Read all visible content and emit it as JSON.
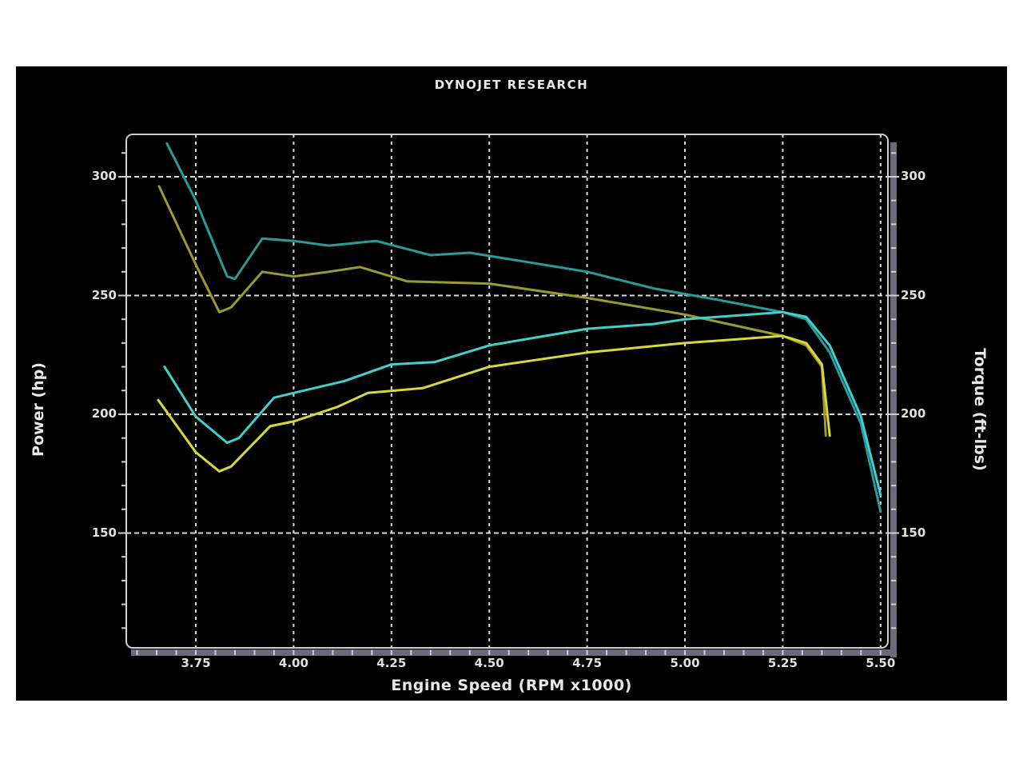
{
  "header": {
    "title": "DYNOJET RESEARCH"
  },
  "axes": {
    "x_title": "Engine Speed (RPM x1000)",
    "y_left_title": "Power (hp)",
    "y_right_title": "Torque (ft-lbs)"
  },
  "colors": {
    "background": "#000000",
    "grid": "#d8d8d8",
    "frame": "#cfcfcf",
    "axis_bar": "#6a6a78",
    "run1_power": "#3fd0d0",
    "run1_torque": "#2a9a9a",
    "run2_power": "#d8d838",
    "run2_torque": "#9a9a30"
  },
  "chart_data": {
    "type": "line",
    "title": "DYNOJET RESEARCH",
    "xlabel": "Engine Speed (RPM x1000)",
    "ylabel": "Power (hp)",
    "y2label": "Torque (ft-lbs)",
    "xlim": [
      3.57,
      5.52
    ],
    "ylim": [
      102,
      316
    ],
    "y2lim": [
      102,
      316
    ],
    "grid": true,
    "legend": "none",
    "x_ticks": [
      "3.75",
      "4.00",
      "4.25",
      "4.50",
      "4.75",
      "5.00",
      "5.25",
      "5.50"
    ],
    "x_tick_values": [
      3.75,
      4.0,
      4.25,
      4.5,
      4.75,
      5.0,
      5.25,
      5.5
    ],
    "y_ticks": [
      "300",
      "250",
      "200",
      "150"
    ],
    "y_tick_values": [
      300,
      250,
      200,
      150
    ],
    "y2_ticks": [
      "300",
      "250",
      "200",
      "150"
    ],
    "y2_tick_values": [
      300,
      250,
      200,
      150
    ],
    "series": [
      {
        "name": "Torque (run 1, teal)",
        "axis": "right",
        "color": "#2a9a9a",
        "x": [
          3.676,
          3.75,
          3.83,
          3.85,
          3.92,
          4.0,
          4.09,
          4.21,
          4.35,
          4.45,
          4.75,
          4.92,
          5.09,
          5.25,
          5.31,
          5.37,
          5.45,
          5.5
        ],
        "values": [
          314,
          290,
          258,
          257,
          274,
          273,
          271,
          273,
          267,
          268,
          260,
          253,
          248,
          243,
          240,
          226,
          196,
          159
        ]
      },
      {
        "name": "Torque (run 2, olive)",
        "axis": "right",
        "color": "#9a9a30",
        "x": [
          3.656,
          3.75,
          3.81,
          3.84,
          3.92,
          4.0,
          4.09,
          4.17,
          4.29,
          4.5,
          4.75,
          5.0,
          5.25,
          5.31,
          5.35,
          5.36
        ],
        "values": [
          296,
          263,
          243,
          245,
          260,
          258,
          260,
          262,
          256,
          255,
          249,
          242,
          233,
          229,
          220,
          191
        ]
      },
      {
        "name": "Power (run 1, cyan)",
        "axis": "left",
        "color": "#3fd0d0",
        "x": [
          3.67,
          3.75,
          3.83,
          3.86,
          3.95,
          4.0,
          4.13,
          4.25,
          4.36,
          4.5,
          4.75,
          4.92,
          5.0,
          5.25,
          5.31,
          5.37,
          5.45,
          5.5
        ],
        "values": [
          220,
          199,
          188,
          190,
          207,
          209,
          214,
          221,
          222,
          229,
          236,
          238,
          240,
          243,
          241,
          229,
          199,
          166
        ]
      },
      {
        "name": "Power (run 2, yellow)",
        "axis": "left",
        "color": "#d8d838",
        "x": [
          3.654,
          3.75,
          3.81,
          3.84,
          3.94,
          4.0,
          4.11,
          4.19,
          4.33,
          4.5,
          4.75,
          5.0,
          5.25,
          5.31,
          5.35,
          5.37
        ],
        "values": [
          206,
          184,
          176,
          178,
          195,
          197,
          203,
          209,
          211,
          220,
          226,
          230,
          233,
          230,
          221,
          191
        ]
      }
    ]
  }
}
